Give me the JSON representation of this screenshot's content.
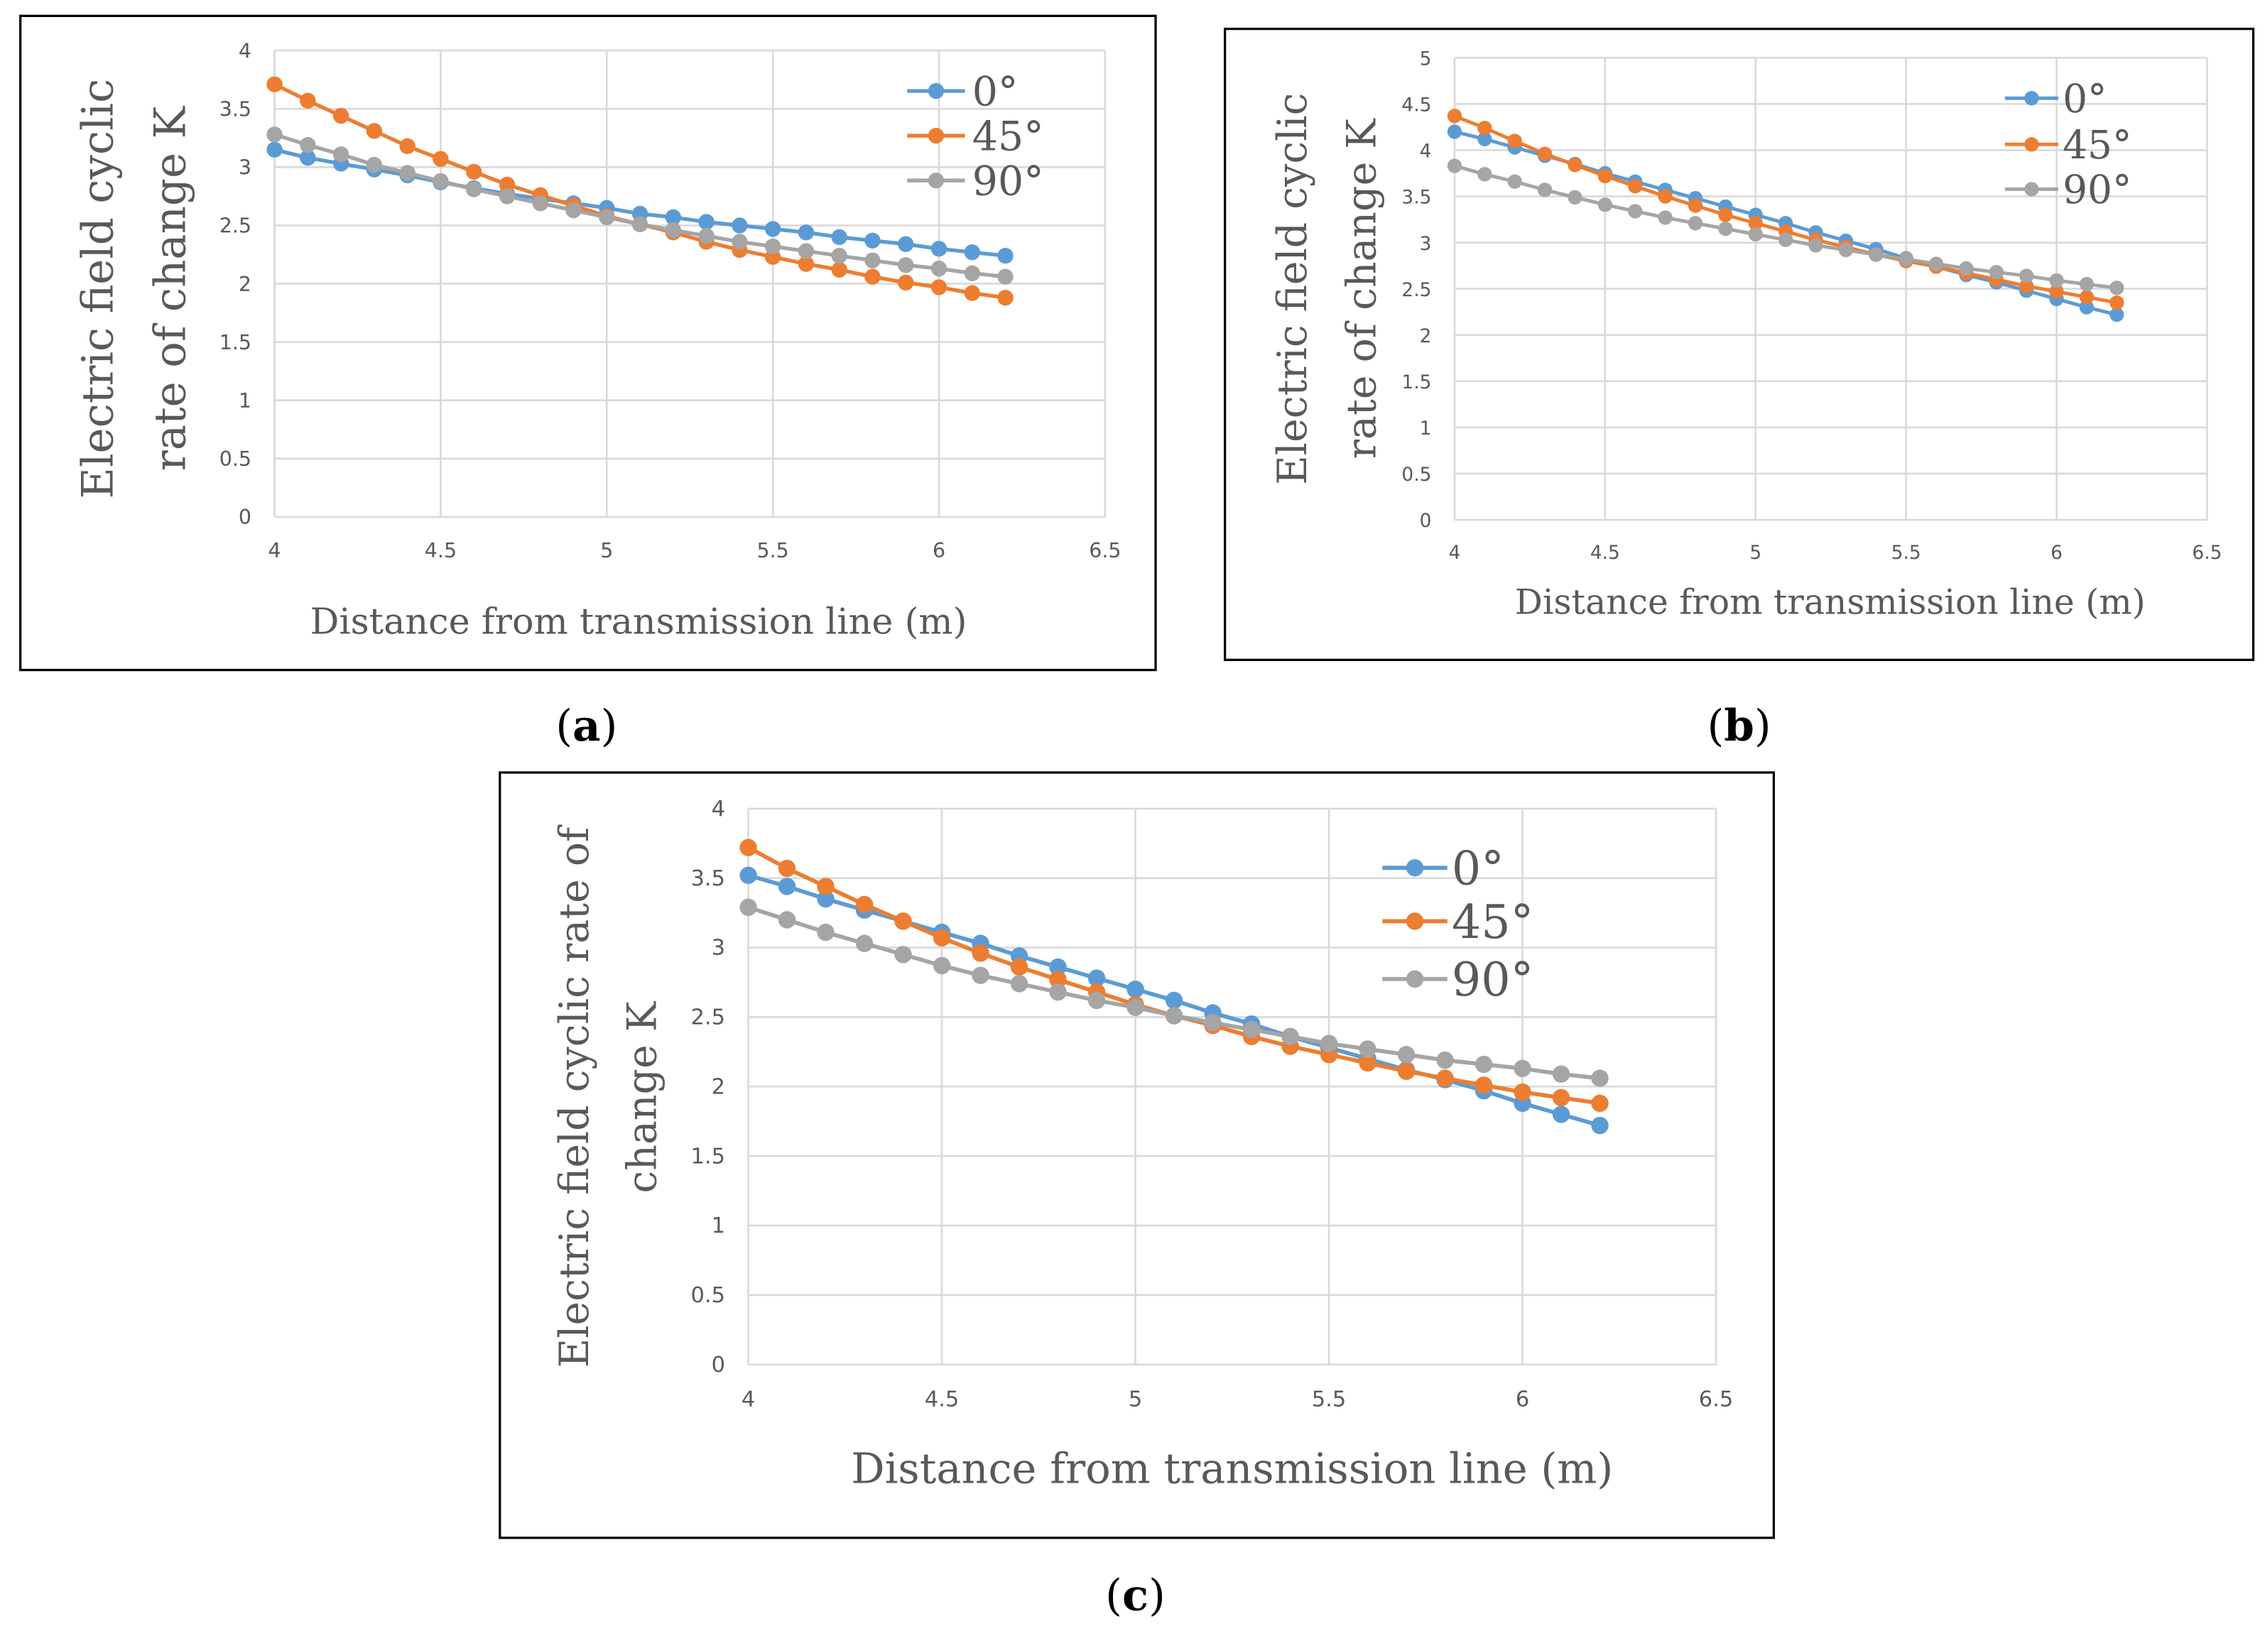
{
  "colors": {
    "s0": "#5b9bd5",
    "s45": "#ed7d31",
    "s90": "#a5a5a5",
    "grid": "#d9d9d9",
    "text": "#595959"
  },
  "chart_data": [
    {
      "type": "line",
      "caption": "(a)",
      "caption_letter": "a",
      "xlabel": "Distance from transmission line (m)",
      "ylabel_lines": [
        "Electric field cyclic",
        "rate of change K"
      ],
      "xlim": [
        4,
        6.5
      ],
      "ylim": [
        0,
        4
      ],
      "xticks": [
        "4",
        "4.5",
        "5",
        "5.5",
        "6",
        "6.5"
      ],
      "yticks": [
        "0",
        "0.5",
        "1",
        "1.5",
        "2",
        "2.5",
        "3",
        "3.5",
        "4"
      ],
      "legend_position": "top-right",
      "grid": true,
      "x": [
        4.0,
        4.1,
        4.2,
        4.3,
        4.4,
        4.5,
        4.6,
        4.7,
        4.8,
        4.9,
        5.0,
        5.1,
        5.2,
        5.3,
        5.4,
        5.5,
        5.6,
        5.7,
        5.8,
        5.9,
        6.0,
        6.1,
        6.2
      ],
      "series": [
        {
          "name": "0°",
          "values": [
            3.15,
            3.08,
            3.03,
            2.98,
            2.93,
            2.87,
            2.82,
            2.77,
            2.73,
            2.69,
            2.65,
            2.6,
            2.57,
            2.53,
            2.5,
            2.47,
            2.44,
            2.4,
            2.37,
            2.34,
            2.3,
            2.27,
            2.24
          ]
        },
        {
          "name": "45°",
          "values": [
            3.71,
            3.57,
            3.44,
            3.31,
            3.18,
            3.07,
            2.96,
            2.85,
            2.76,
            2.67,
            2.58,
            2.51,
            2.44,
            2.36,
            2.29,
            2.23,
            2.17,
            2.12,
            2.06,
            2.01,
            1.97,
            1.92,
            1.88
          ]
        },
        {
          "name": "90°",
          "values": [
            3.28,
            3.19,
            3.11,
            3.02,
            2.95,
            2.88,
            2.81,
            2.75,
            2.69,
            2.63,
            2.57,
            2.51,
            2.46,
            2.41,
            2.36,
            2.32,
            2.28,
            2.24,
            2.2,
            2.16,
            2.13,
            2.09,
            2.06
          ]
        }
      ]
    },
    {
      "type": "line",
      "caption": "(b)",
      "caption_letter": "b",
      "xlabel": "Distance from transmission line (m)",
      "ylabel_lines": [
        "Electric field cyclic",
        "rate of change K"
      ],
      "xlim": [
        4,
        6.5
      ],
      "ylim": [
        0,
        5
      ],
      "xticks": [
        "4",
        "4.5",
        "5",
        "5.5",
        "6",
        "6.5"
      ],
      "yticks": [
        "0",
        "0.5",
        "1",
        "1.5",
        "2",
        "2.5",
        "3",
        "3.5",
        "4",
        "4.5",
        "5"
      ],
      "legend_position": "top-right",
      "grid": true,
      "x": [
        4.0,
        4.1,
        4.2,
        4.3,
        4.4,
        4.5,
        4.6,
        4.7,
        4.8,
        4.9,
        5.0,
        5.1,
        5.2,
        5.3,
        5.4,
        5.5,
        5.6,
        5.7,
        5.8,
        5.9,
        6.0,
        6.1,
        6.2
      ],
      "series": [
        {
          "name": "0°",
          "values": [
            4.2,
            4.12,
            4.03,
            3.94,
            3.85,
            3.75,
            3.66,
            3.57,
            3.48,
            3.39,
            3.3,
            3.21,
            3.11,
            3.02,
            2.93,
            2.83,
            2.74,
            2.65,
            2.57,
            2.48,
            2.39,
            2.3,
            2.22
          ]
        },
        {
          "name": "45°",
          "values": [
            4.37,
            4.24,
            4.1,
            3.96,
            3.84,
            3.72,
            3.61,
            3.5,
            3.4,
            3.3,
            3.21,
            3.12,
            3.03,
            2.95,
            2.87,
            2.8,
            2.74,
            2.67,
            2.6,
            2.53,
            2.47,
            2.41,
            2.35
          ]
        },
        {
          "name": "90°",
          "values": [
            3.83,
            3.74,
            3.66,
            3.57,
            3.49,
            3.41,
            3.34,
            3.27,
            3.21,
            3.15,
            3.09,
            3.03,
            2.97,
            2.92,
            2.87,
            2.82,
            2.77,
            2.72,
            2.68,
            2.64,
            2.59,
            2.55,
            2.51
          ]
        }
      ]
    },
    {
      "type": "line",
      "caption": "(c)",
      "caption_letter": "c",
      "xlabel": "Distance from transmission line (m)",
      "ylabel_lines": [
        "Electric field cyclic rate of",
        "change K"
      ],
      "xlim": [
        4,
        6.5
      ],
      "ylim": [
        0,
        4
      ],
      "xticks": [
        "4",
        "4.5",
        "5",
        "5.5",
        "6",
        "6.5"
      ],
      "yticks": [
        "0",
        "0.5",
        "1",
        "1.5",
        "2",
        "2.5",
        "3",
        "3.5",
        "4"
      ],
      "legend_position": "top-right",
      "grid": true,
      "x": [
        4.0,
        4.1,
        4.2,
        4.3,
        4.4,
        4.5,
        4.6,
        4.7,
        4.8,
        4.9,
        5.0,
        5.1,
        5.2,
        5.3,
        5.4,
        5.5,
        5.6,
        5.7,
        5.8,
        5.9,
        6.0,
        6.1,
        6.2
      ],
      "series": [
        {
          "name": "0°",
          "values": [
            3.52,
            3.44,
            3.35,
            3.27,
            3.19,
            3.11,
            3.03,
            2.94,
            2.86,
            2.78,
            2.7,
            2.62,
            2.53,
            2.45,
            2.36,
            2.28,
            2.2,
            2.12,
            2.05,
            1.97,
            1.88,
            1.8,
            1.72
          ]
        },
        {
          "name": "45°",
          "values": [
            3.72,
            3.57,
            3.44,
            3.31,
            3.19,
            3.07,
            2.96,
            2.86,
            2.77,
            2.68,
            2.59,
            2.51,
            2.44,
            2.36,
            2.29,
            2.23,
            2.17,
            2.11,
            2.06,
            2.01,
            1.96,
            1.92,
            1.88
          ]
        },
        {
          "name": "90°",
          "values": [
            3.29,
            3.2,
            3.11,
            3.03,
            2.95,
            2.87,
            2.8,
            2.74,
            2.68,
            2.62,
            2.57,
            2.51,
            2.46,
            2.41,
            2.36,
            2.31,
            2.27,
            2.23,
            2.19,
            2.16,
            2.13,
            2.09,
            2.06
          ]
        }
      ]
    }
  ]
}
